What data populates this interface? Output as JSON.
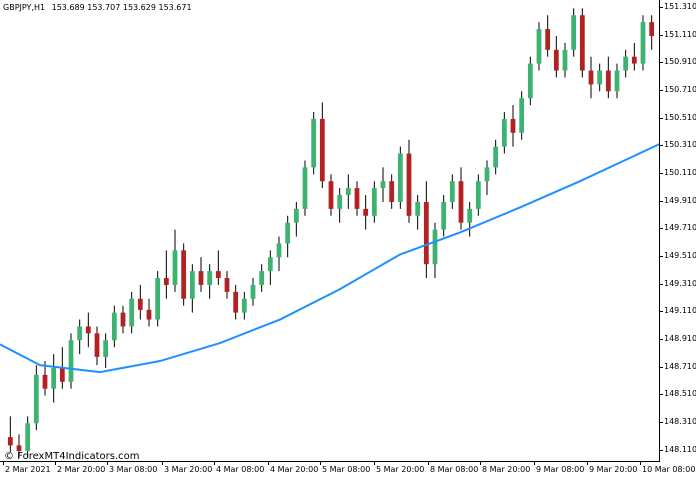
{
  "header": {
    "symbol": "GBPJPY,H1",
    "ohlc": "153.689 153.707 153.629 153.671"
  },
  "watermark": "© ForexMT4Indicators.com",
  "price_axis": {
    "labels": [
      "151.310",
      "151.110",
      "150.910",
      "150.710",
      "150.510",
      "150.310",
      "150.110",
      "149.910",
      "149.710",
      "149.510",
      "149.310",
      "149.110",
      "148.910",
      "148.710",
      "148.510",
      "148.310",
      "148.110"
    ],
    "min": 148.02,
    "max": 151.36
  },
  "time_axis": {
    "labels": [
      "2 Mar 2021",
      "2 Mar 20:00",
      "3 Mar 08:00",
      "3 Mar 20:00",
      "4 Mar 08:00",
      "4 Mar 20:00",
      "5 Mar 08:00",
      "5 Mar 20:00",
      "8 Mar 08:00",
      "8 Mar 20:00",
      "9 Mar 08:00",
      "9 Mar 20:00",
      "10 Mar 08:00"
    ]
  },
  "colors": {
    "bull": "#3cb371",
    "bear": "#b22222",
    "ma": "#1e90ff",
    "wick": "#000000"
  },
  "chart_data": {
    "type": "candlestick",
    "symbol": "GBPJPY",
    "timeframe": "H1",
    "ylim": [
      148.02,
      151.36
    ],
    "candles_approx": [
      [
        148.2,
        148.35,
        148.09,
        148.14
      ],
      [
        148.14,
        148.22,
        148.05,
        148.1
      ],
      [
        148.1,
        148.35,
        148.05,
        148.3
      ],
      [
        148.3,
        148.72,
        148.25,
        148.65
      ],
      [
        148.65,
        148.75,
        148.5,
        148.55
      ],
      [
        148.55,
        148.8,
        148.45,
        148.7
      ],
      [
        148.7,
        148.85,
        148.55,
        148.6
      ],
      [
        148.6,
        148.95,
        148.55,
        148.9
      ],
      [
        148.9,
        149.05,
        148.8,
        149.0
      ],
      [
        149.0,
        149.1,
        148.85,
        148.95
      ],
      [
        148.95,
        149.0,
        148.72,
        148.78
      ],
      [
        148.78,
        148.95,
        148.7,
        148.9
      ],
      [
        148.9,
        149.15,
        148.85,
        149.1
      ],
      [
        149.1,
        149.15,
        148.95,
        149.0
      ],
      [
        149.0,
        149.25,
        148.95,
        149.2
      ],
      [
        149.2,
        149.3,
        149.05,
        149.12
      ],
      [
        149.12,
        149.2,
        149.0,
        149.05
      ],
      [
        149.05,
        149.4,
        149.0,
        149.35
      ],
      [
        149.35,
        149.55,
        149.2,
        149.3
      ],
      [
        149.3,
        149.7,
        149.25,
        149.55
      ],
      [
        149.55,
        149.6,
        149.15,
        149.2
      ],
      [
        149.2,
        149.45,
        149.1,
        149.4
      ],
      [
        149.4,
        149.5,
        149.25,
        149.3
      ],
      [
        149.3,
        149.45,
        149.2,
        149.4
      ],
      [
        149.4,
        149.55,
        149.3,
        149.35
      ],
      [
        149.35,
        149.4,
        149.2,
        149.25
      ],
      [
        149.25,
        149.3,
        149.05,
        149.1
      ],
      [
        149.1,
        149.25,
        149.05,
        149.2
      ],
      [
        149.2,
        149.35,
        149.15,
        149.3
      ],
      [
        149.3,
        149.45,
        149.25,
        149.4
      ],
      [
        149.4,
        149.55,
        149.3,
        149.5
      ],
      [
        149.5,
        149.65,
        149.4,
        149.6
      ],
      [
        149.6,
        149.8,
        149.5,
        149.75
      ],
      [
        149.75,
        149.9,
        149.65,
        149.85
      ],
      [
        149.85,
        150.2,
        149.8,
        150.15
      ],
      [
        150.15,
        150.55,
        150.1,
        150.5
      ],
      [
        150.5,
        150.62,
        150.0,
        150.05
      ],
      [
        150.05,
        150.1,
        149.8,
        149.85
      ],
      [
        149.85,
        150.0,
        149.75,
        149.95
      ],
      [
        149.95,
        150.1,
        149.85,
        150.0
      ],
      [
        150.0,
        150.05,
        149.8,
        149.85
      ],
      [
        149.85,
        149.95,
        149.7,
        149.8
      ],
      [
        149.8,
        150.05,
        149.75,
        150.0
      ],
      [
        150.0,
        150.15,
        149.9,
        150.05
      ],
      [
        150.05,
        150.1,
        149.85,
        149.9
      ],
      [
        149.9,
        150.3,
        149.85,
        150.25
      ],
      [
        150.25,
        150.35,
        149.75,
        149.8
      ],
      [
        149.8,
        149.95,
        149.7,
        149.9
      ],
      [
        149.9,
        150.05,
        149.35,
        149.45
      ],
      [
        149.45,
        149.75,
        149.35,
        149.7
      ],
      [
        149.7,
        149.95,
        149.65,
        149.9
      ],
      [
        149.9,
        150.1,
        149.85,
        150.05
      ],
      [
        150.05,
        150.15,
        149.7,
        149.75
      ],
      [
        149.75,
        149.9,
        149.65,
        149.85
      ],
      [
        149.85,
        150.1,
        149.8,
        150.05
      ],
      [
        150.05,
        150.2,
        149.95,
        150.15
      ],
      [
        150.15,
        150.35,
        150.1,
        150.3
      ],
      [
        150.3,
        150.55,
        150.25,
        150.5
      ],
      [
        150.5,
        150.6,
        150.3,
        150.4
      ],
      [
        150.4,
        150.7,
        150.35,
        150.65
      ],
      [
        150.65,
        150.95,
        150.6,
        150.9
      ],
      [
        150.9,
        151.2,
        150.85,
        151.15
      ],
      [
        151.15,
        151.25,
        150.95,
        151.0
      ],
      [
        151.0,
        151.1,
        150.8,
        150.85
      ],
      [
        150.85,
        151.05,
        150.8,
        151.0
      ],
      [
        151.0,
        151.3,
        150.95,
        151.25
      ],
      [
        151.25,
        151.3,
        150.8,
        150.85
      ],
      [
        150.85,
        150.95,
        150.65,
        150.75
      ],
      [
        150.75,
        150.9,
        150.7,
        150.85
      ],
      [
        150.85,
        150.95,
        150.65,
        150.7
      ],
      [
        150.7,
        150.9,
        150.65,
        150.85
      ],
      [
        150.85,
        151.0,
        150.8,
        150.95
      ],
      [
        150.95,
        151.05,
        150.85,
        150.9
      ],
      [
        150.9,
        151.25,
        150.85,
        151.2
      ],
      [
        151.2,
        151.25,
        151.0,
        151.1
      ]
    ],
    "moving_average": {
      "color": "#1e90ff",
      "points": [
        [
          0,
          148.87
        ],
        [
          40,
          148.72
        ],
        [
          100,
          148.67
        ],
        [
          160,
          148.75
        ],
        [
          220,
          148.88
        ],
        [
          280,
          149.05
        ],
        [
          340,
          149.27
        ],
        [
          400,
          149.52
        ],
        [
          460,
          149.68
        ],
        [
          520,
          149.86
        ],
        [
          580,
          150.05
        ],
        [
          660,
          150.32
        ]
      ]
    }
  }
}
